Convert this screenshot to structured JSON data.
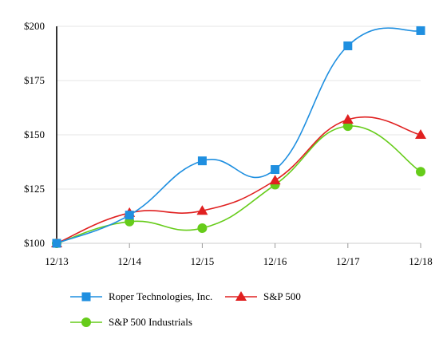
{
  "chart_data": {
    "type": "line",
    "categories": [
      "12/13",
      "12/14",
      "12/15",
      "12/16",
      "12/17",
      "12/18"
    ],
    "y_ticks": [
      "$100",
      "$125",
      "$150",
      "$175",
      "$200"
    ],
    "y_tick_values": [
      100,
      125,
      150,
      175,
      200
    ],
    "ylim": [
      100,
      200
    ],
    "grid": "horizontal",
    "legend": "bottom",
    "series": [
      {
        "name": "Roper Technologies, Inc.",
        "values": [
          100,
          113,
          138,
          134,
          191,
          198
        ],
        "color": "#1f8fe0",
        "marker": "square"
      },
      {
        "name": "S&P 500",
        "values": [
          100,
          114,
          115,
          129,
          157,
          150
        ],
        "color": "#e02020",
        "marker": "triangle"
      },
      {
        "name": "S&P 500 Industrials",
        "values": [
          100,
          110,
          107,
          127,
          154,
          133
        ],
        "color": "#66cc1a",
        "marker": "circle"
      }
    ]
  }
}
